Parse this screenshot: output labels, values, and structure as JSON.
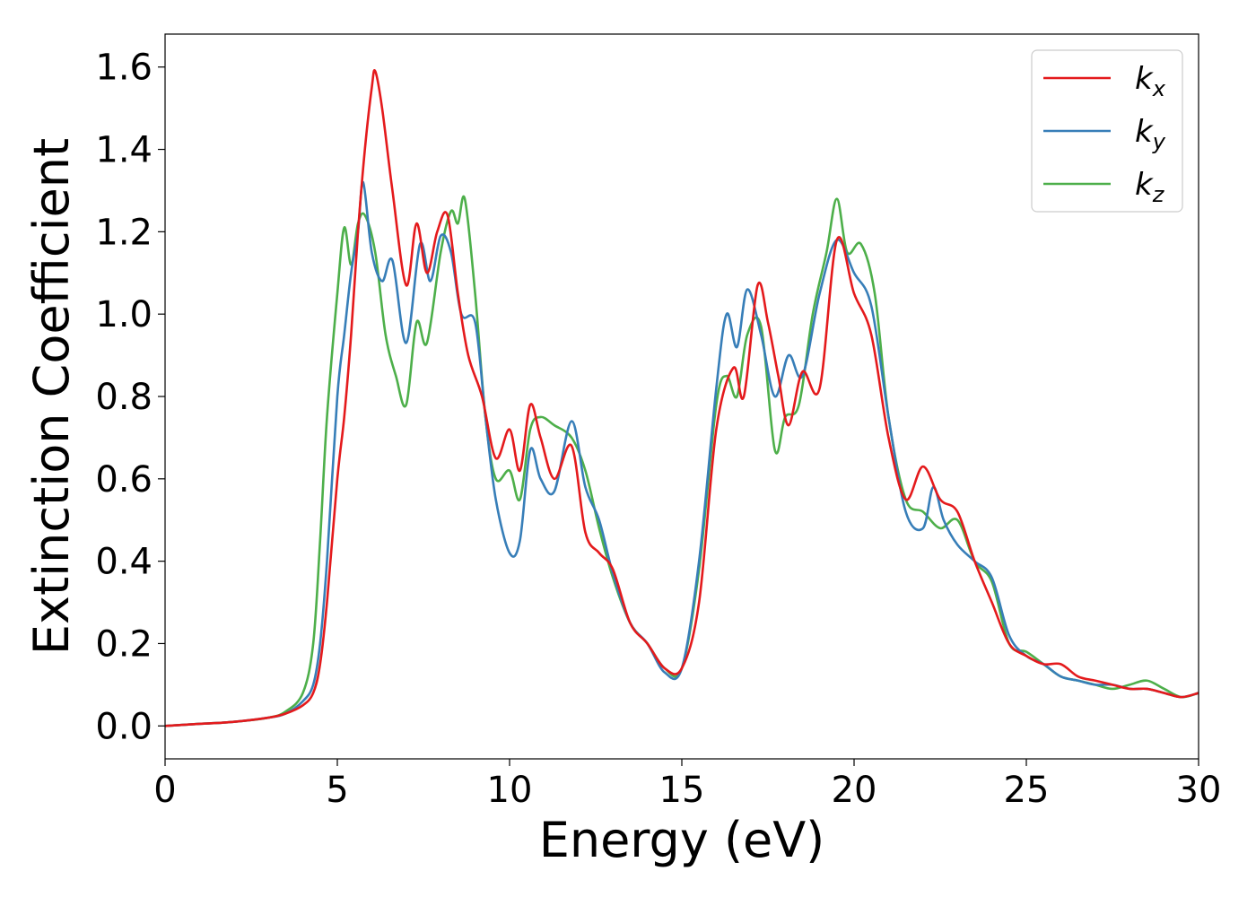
{
  "chart_data": {
    "type": "line",
    "xlabel": "Energy (eV)",
    "ylabel": "Extinction Coefficient",
    "xlim": [
      0,
      30
    ],
    "ylim": [
      -0.08,
      1.68
    ],
    "x_ticks": [
      0,
      5,
      10,
      15,
      20,
      25,
      30
    ],
    "x_tick_labels": [
      "0",
      "5",
      "10",
      "15",
      "20",
      "25",
      "30"
    ],
    "y_ticks": [
      0.0,
      0.2,
      0.4,
      0.6,
      0.8,
      1.0,
      1.2,
      1.4,
      1.6
    ],
    "y_tick_labels": [
      "0.0",
      "0.2",
      "0.4",
      "0.6",
      "0.8",
      "1.0",
      "1.2",
      "1.4",
      "1.6"
    ],
    "grid": false,
    "legend_position": "top-right",
    "series": [
      {
        "name": "k",
        "name_sub": "x",
        "color": "#e41a1c",
        "x": [
          0,
          1,
          2,
          3,
          3.5,
          4,
          4.3,
          4.5,
          4.7,
          5,
          5.2,
          5.4,
          5.6,
          5.8,
          6.0,
          6.1,
          6.3,
          6.6,
          7.0,
          7.3,
          7.6,
          7.9,
          8.2,
          8.5,
          8.8,
          9.2,
          9.6,
          10.0,
          10.3,
          10.6,
          10.9,
          11.3,
          11.8,
          12.2,
          12.6,
          13.0,
          13.5,
          14.0,
          14.5,
          15.0,
          15.5,
          16.0,
          16.5,
          16.8,
          17.2,
          17.5,
          17.8,
          18.1,
          18.5,
          19.0,
          19.5,
          20.0,
          20.5,
          21.0,
          21.5,
          22.0,
          22.5,
          23.0,
          23.5,
          24.0,
          24.5,
          25.0,
          25.5,
          26.0,
          26.5,
          27.0,
          27.5,
          28.0,
          28.5,
          29.0,
          29.5,
          30.0
        ],
        "y": [
          0.0,
          0.005,
          0.01,
          0.02,
          0.03,
          0.05,
          0.08,
          0.15,
          0.3,
          0.6,
          0.75,
          0.95,
          1.2,
          1.4,
          1.55,
          1.59,
          1.5,
          1.3,
          1.07,
          1.22,
          1.1,
          1.2,
          1.24,
          1.05,
          0.9,
          0.8,
          0.65,
          0.72,
          0.62,
          0.78,
          0.7,
          0.6,
          0.68,
          0.47,
          0.42,
          0.38,
          0.25,
          0.2,
          0.14,
          0.14,
          0.3,
          0.72,
          0.87,
          0.8,
          1.07,
          0.98,
          0.85,
          0.73,
          0.86,
          0.82,
          1.18,
          1.05,
          0.95,
          0.7,
          0.55,
          0.63,
          0.55,
          0.52,
          0.4,
          0.3,
          0.2,
          0.17,
          0.15,
          0.15,
          0.12,
          0.11,
          0.1,
          0.09,
          0.09,
          0.08,
          0.07,
          0.08
        ]
      },
      {
        "name": "k",
        "name_sub": "y",
        "color": "#377eb8",
        "x": [
          0,
          1,
          2,
          3,
          3.5,
          4,
          4.3,
          4.5,
          4.7,
          5,
          5.2,
          5.4,
          5.6,
          5.75,
          6.0,
          6.3,
          6.6,
          7.0,
          7.4,
          7.7,
          8.0,
          8.3,
          8.6,
          9.0,
          9.3,
          9.6,
          10.0,
          10.3,
          10.6,
          10.9,
          11.3,
          11.8,
          12.2,
          12.6,
          13.0,
          13.5,
          14.0,
          14.5,
          15.0,
          15.5,
          16.0,
          16.3,
          16.6,
          16.9,
          17.3,
          17.7,
          18.1,
          18.5,
          19.0,
          19.5,
          20.0,
          20.5,
          21.0,
          21.5,
          22.0,
          22.3,
          22.6,
          23.0,
          23.5,
          24.0,
          24.5,
          25.0,
          25.5,
          26.0,
          26.5,
          27.0,
          27.5,
          28.0,
          28.5,
          29.0,
          29.5,
          30.0
        ],
        "y": [
          0.0,
          0.005,
          0.01,
          0.02,
          0.03,
          0.06,
          0.1,
          0.2,
          0.4,
          0.8,
          0.95,
          1.1,
          1.2,
          1.32,
          1.15,
          1.08,
          1.13,
          0.93,
          1.17,
          1.08,
          1.19,
          1.15,
          1.0,
          0.98,
          0.75,
          0.55,
          0.42,
          0.45,
          0.67,
          0.6,
          0.57,
          0.74,
          0.58,
          0.5,
          0.37,
          0.25,
          0.2,
          0.13,
          0.14,
          0.4,
          0.82,
          1.0,
          0.92,
          1.06,
          0.95,
          0.8,
          0.9,
          0.85,
          1.05,
          1.18,
          1.1,
          1.02,
          0.75,
          0.52,
          0.48,
          0.58,
          0.5,
          0.44,
          0.4,
          0.36,
          0.22,
          0.17,
          0.15,
          0.12,
          0.11,
          0.1,
          0.1,
          0.09,
          0.09,
          0.08,
          0.07,
          0.08
        ]
      },
      {
        "name": "k",
        "name_sub": "z",
        "color": "#4daf4a",
        "x": [
          0,
          1,
          2,
          3,
          3.5,
          4,
          4.3,
          4.5,
          4.7,
          5.0,
          5.2,
          5.4,
          5.6,
          5.8,
          6.1,
          6.4,
          6.7,
          7.0,
          7.3,
          7.6,
          8.0,
          8.3,
          8.5,
          8.7,
          9.0,
          9.3,
          9.6,
          10.0,
          10.3,
          10.6,
          10.9,
          11.3,
          11.8,
          12.2,
          12.6,
          13.0,
          13.5,
          14.0,
          14.5,
          15.0,
          15.5,
          16.0,
          16.3,
          16.6,
          16.9,
          17.3,
          17.7,
          18.0,
          18.4,
          18.8,
          19.2,
          19.5,
          19.8,
          20.2,
          20.6,
          21.0,
          21.5,
          22.0,
          22.5,
          23.0,
          23.5,
          24.0,
          24.5,
          25.0,
          25.5,
          26.0,
          26.5,
          27.0,
          27.5,
          28.0,
          28.5,
          29.0,
          29.5,
          30.0
        ],
        "y": [
          0.0,
          0.005,
          0.01,
          0.02,
          0.035,
          0.08,
          0.2,
          0.45,
          0.75,
          1.05,
          1.21,
          1.12,
          1.22,
          1.24,
          1.15,
          0.95,
          0.85,
          0.78,
          0.98,
          0.93,
          1.15,
          1.25,
          1.22,
          1.28,
          1.05,
          0.75,
          0.6,
          0.62,
          0.55,
          0.72,
          0.75,
          0.73,
          0.7,
          0.62,
          0.48,
          0.36,
          0.25,
          0.2,
          0.14,
          0.14,
          0.38,
          0.78,
          0.85,
          0.8,
          0.95,
          0.97,
          0.67,
          0.75,
          0.78,
          1.0,
          1.15,
          1.28,
          1.15,
          1.17,
          1.05,
          0.75,
          0.55,
          0.52,
          0.48,
          0.5,
          0.4,
          0.35,
          0.2,
          0.18,
          0.15,
          0.12,
          0.11,
          0.1,
          0.09,
          0.1,
          0.11,
          0.09,
          0.07,
          0.08
        ]
      }
    ]
  }
}
